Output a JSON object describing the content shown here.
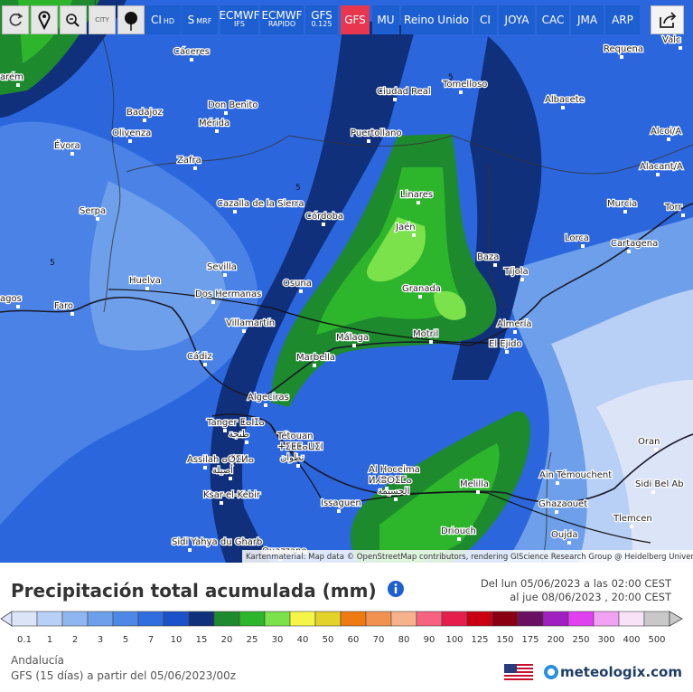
{
  "toolbar": {
    "buttons": [
      {
        "text": "CITY"
      },
      {
        "text": "CI",
        "sub": "HD"
      },
      {
        "text": "S",
        "sub": "MRF"
      },
      {
        "text": "ECMWF",
        "sub": "IFS"
      },
      {
        "text": "ECMWF",
        "sub": "RAPIDO"
      },
      {
        "text": "GFS",
        "sub": "0.125"
      },
      {
        "text": "GFS"
      },
      {
        "text": "MU"
      },
      {
        "text": "Reino Unido"
      },
      {
        "text": "CI"
      },
      {
        "text": "JOYA"
      },
      {
        "text": "CAC"
      },
      {
        "text": "JMA"
      },
      {
        "text": "ARP"
      }
    ]
  },
  "map": {
    "places": [
      "Cáceres",
      "Requena",
      "Valc",
      "arém",
      "Tomelloso",
      "Ciudad Real",
      "Albacete",
      "Don Benito",
      "Badajoz",
      "Mérida",
      "Olivenza",
      "Puertollano",
      "Alcoi/A",
      "Évora",
      "Zafra",
      "Alacant/A",
      "Linares",
      "Cazalla de la Sierra",
      "Serpa",
      "Córdoba",
      "Murcia",
      "Torr",
      "Jaén",
      "Lorca",
      "Cartagena",
      "Baza",
      "Tíjola",
      "Sevilla",
      "Huelva",
      "Dos Hermanas",
      "Osuna",
      "Granada",
      "agos",
      "Faro",
      "Almería",
      "Villamartín",
      "Málaga",
      "Motril",
      "El Ejido",
      "Marbella",
      "Cádiz",
      "Algeciras",
      "Tanger ⵟⴰⵏⵊⴰ",
      "طنجة",
      "Tétouan",
      "ⵜⵉⵟⵟⴰⵡⵉⵏ",
      "تطوان",
      "Assilah ⴰⵚⵉⵍⴰ",
      "أصيلة",
      "Al Hoceima",
      "ⵍⵃⵓⵙⵉⵎⴰ",
      "الحسيمة",
      "Melilla",
      "Aïn Témouchent",
      "Oran",
      "Sidi Bel Ab",
      "Ksar-el-Kebir",
      "Issaguen",
      "Ghazaouet",
      "Tlemcen",
      "Driouch",
      "Oujda",
      "Sidi Yahya du Gharb",
      "Ouazzane"
    ],
    "contour_labels": [
      "5",
      "5",
      "5"
    ],
    "attribution": "Kartenmaterial: Map data © OpenStreetMap contributors, rendering GIScience Research Group @ Heidelberg University"
  },
  "header": {
    "title": "Precipitación total acumulada (mm)",
    "from": "Del lun 05/06/2023 a las 02:00 CEST",
    "to": "al jue 08/06/2023 , 20:00 CEST"
  },
  "legend": {
    "items": [
      {
        "value": 0.1,
        "color": "#dce5f8"
      },
      {
        "value": 1,
        "color": "#b8cff6"
      },
      {
        "value": 2,
        "color": "#8fb6f1"
      },
      {
        "value": 3,
        "color": "#6d9fea"
      },
      {
        "value": 5,
        "color": "#4d88e6"
      },
      {
        "value": 7,
        "color": "#306ee0"
      },
      {
        "value": 10,
        "color": "#1b51c9"
      },
      {
        "value": 15,
        "color": "#10307c"
      },
      {
        "value": 20,
        "color": "#1d8a2e"
      },
      {
        "value": 25,
        "color": "#2db52c"
      },
      {
        "value": 30,
        "color": "#7be24b"
      },
      {
        "value": 40,
        "color": "#f5f548"
      },
      {
        "value": 50,
        "color": "#e2d22a"
      },
      {
        "value": 60,
        "color": "#ef7a12"
      },
      {
        "value": 70,
        "color": "#f29250"
      },
      {
        "value": 80,
        "color": "#f7b28c"
      },
      {
        "value": 90,
        "color": "#f56282"
      },
      {
        "value": 100,
        "color": "#e61e4e"
      },
      {
        "value": 125,
        "color": "#c80012"
      },
      {
        "value": 150,
        "color": "#8a0012"
      },
      {
        "value": 175,
        "color": "#6a1060"
      },
      {
        "value": 200,
        "color": "#a01fc0"
      },
      {
        "value": 250,
        "color": "#e040f0"
      },
      {
        "value": 300,
        "color": "#f2a2f2"
      },
      {
        "value": 400,
        "color": "#f8e2f8"
      },
      {
        "value": 500,
        "color": "#c8c8c8"
      }
    ]
  },
  "footer": {
    "region": "Andalucía",
    "model": "GFS (15 días) a partir del 05/06/2023/00z",
    "brand": "meteologix.com"
  }
}
